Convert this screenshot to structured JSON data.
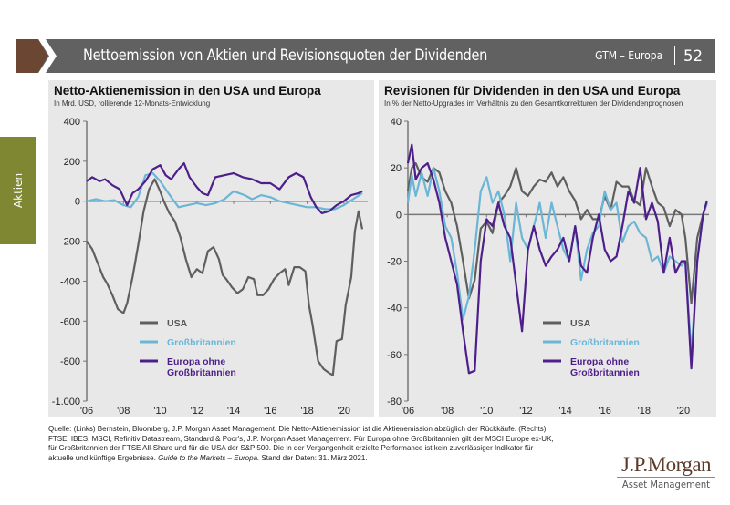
{
  "header": {
    "title": "Nettoemission von Aktien und Revisionsquoten der Dividenden",
    "gtm_label": "GTM – Europa",
    "page_number": "52"
  },
  "side_tab": {
    "label": "Aktien"
  },
  "colors": {
    "header_bar": "#616161",
    "header_accent": "#6b4633",
    "side_tab": "#7f8733",
    "panel_bg": "#e8e8e8",
    "usa": "#5f5f5f",
    "uk": "#6bb6d6",
    "europe_ex_uk": "#4e1f8a"
  },
  "chart_data": [
    {
      "type": "line",
      "title": "Netto-Aktienemission in den USA und Europa",
      "subtitle": "In Mrd. USD, rollierende 12-Monats-Entwicklung",
      "xlabel": "",
      "ylabel": "",
      "xlim": [
        2006,
        2021.3
      ],
      "ylim": [
        -1000,
        400
      ],
      "yticks": [
        400,
        200,
        0,
        -200,
        -400,
        -600,
        -800,
        -1000
      ],
      "ytick_labels": [
        "400",
        "200",
        "0",
        "-200",
        "-400",
        "-600",
        "-800",
        "-1.000"
      ],
      "xticks": [
        2006,
        2008,
        2010,
        2012,
        2014,
        2016,
        2018,
        2020
      ],
      "xtick_labels": [
        "'06",
        "'08",
        "'10",
        "'12",
        "'14",
        "'16",
        "'18",
        "'20"
      ],
      "grid": false,
      "legend": "bottom-left",
      "legend_entries": [
        "USA",
        "Großbritannien",
        "Europa ohne Großbritannien"
      ],
      "legend_lines": [
        [
          "USA"
        ],
        [
          "Großbritannien"
        ],
        [
          "Europa ohne",
          "Großbritannien"
        ]
      ],
      "series": [
        {
          "name": "USA",
          "key": "usa",
          "x": [
            2006.0,
            2006.3,
            2006.6,
            2006.9,
            2007.1,
            2007.4,
            2007.7,
            2008.0,
            2008.2,
            2008.5,
            2008.8,
            2009.1,
            2009.4,
            2009.7,
            2010.0,
            2010.2,
            2010.5,
            2010.8,
            2011.1,
            2011.4,
            2011.7,
            2012.0,
            2012.3,
            2012.6,
            2012.9,
            2013.2,
            2013.4,
            2013.6,
            2013.9,
            2014.2,
            2014.5,
            2014.8,
            2015.1,
            2015.3,
            2015.6,
            2015.9,
            2016.2,
            2016.5,
            2016.8,
            2017.0,
            2017.3,
            2017.6,
            2017.9,
            2018.1,
            2018.3,
            2018.6,
            2018.9,
            2019.2,
            2019.4,
            2019.6,
            2019.9,
            2020.1,
            2020.4,
            2020.6,
            2020.8,
            2021.0
          ],
          "y": [
            -200,
            -240,
            -310,
            -380,
            -410,
            -470,
            -540,
            -560,
            -510,
            -380,
            -220,
            -50,
            60,
            110,
            50,
            0,
            -60,
            -100,
            -180,
            -290,
            -380,
            -340,
            -360,
            -250,
            -230,
            -290,
            -370,
            -390,
            -430,
            -460,
            -440,
            -380,
            -390,
            -470,
            -470,
            -440,
            -390,
            -360,
            -340,
            -420,
            -330,
            -330,
            -350,
            -520,
            -620,
            -800,
            -840,
            -860,
            -870,
            -700,
            -690,
            -520,
            -380,
            -150,
            -50,
            -140
          ]
        },
        {
          "name": "Großbritannien",
          "key": "uk",
          "x": [
            2006.0,
            2006.5,
            2007.0,
            2007.5,
            2008.0,
            2008.4,
            2008.8,
            2009.2,
            2009.6,
            2010.0,
            2010.3,
            2010.6,
            2011.0,
            2011.5,
            2012.0,
            2012.5,
            2013.0,
            2013.5,
            2014.0,
            2014.3,
            2014.6,
            2015.0,
            2015.5,
            2016.0,
            2016.5,
            2017.0,
            2017.5,
            2018.0,
            2018.5,
            2019.0,
            2019.5,
            2020.0,
            2020.5,
            2021.0
          ],
          "y": [
            0,
            10,
            0,
            5,
            -20,
            -30,
            20,
            130,
            140,
            100,
            60,
            20,
            -30,
            -20,
            -10,
            -20,
            -10,
            10,
            50,
            40,
            30,
            10,
            30,
            20,
            0,
            -10,
            -20,
            -30,
            -30,
            -40,
            -40,
            -20,
            10,
            40
          ]
        },
        {
          "name": "Europa ohne Großbritannien",
          "key": "europe_ex_uk",
          "x": [
            2006.0,
            2006.3,
            2006.7,
            2007.0,
            2007.4,
            2007.8,
            2008.2,
            2008.5,
            2008.8,
            2009.2,
            2009.6,
            2010.0,
            2010.3,
            2010.6,
            2011.0,
            2011.3,
            2011.6,
            2012.0,
            2012.3,
            2012.6,
            2013.0,
            2013.5,
            2014.0,
            2014.5,
            2015.0,
            2015.5,
            2016.0,
            2016.5,
            2017.0,
            2017.4,
            2017.8,
            2018.2,
            2018.5,
            2018.8,
            2019.2,
            2019.6,
            2020.0,
            2020.4,
            2020.8,
            2021.0
          ],
          "y": [
            100,
            120,
            100,
            110,
            80,
            60,
            -20,
            40,
            60,
            100,
            160,
            180,
            130,
            110,
            160,
            190,
            120,
            70,
            40,
            30,
            120,
            130,
            140,
            120,
            110,
            90,
            90,
            60,
            120,
            140,
            120,
            20,
            -30,
            -60,
            -50,
            -20,
            0,
            30,
            40,
            50
          ]
        }
      ]
    },
    {
      "type": "line",
      "title": "Revisionen für Dividenden in den USA und Europa",
      "subtitle": "In % der Netto-Upgrades im Verhältnis zu den Gesamtkorrekturen der Dividendenprognosen",
      "xlabel": "",
      "ylabel": "",
      "xlim": [
        2006,
        2021.3
      ],
      "ylim": [
        -80,
        40
      ],
      "yticks": [
        40,
        20,
        0,
        -20,
        -40,
        -60,
        -80
      ],
      "ytick_labels": [
        "40",
        "20",
        "0",
        "-20",
        "-40",
        "-60",
        "-80"
      ],
      "xticks": [
        2006,
        2008,
        2010,
        2012,
        2014,
        2016,
        2018,
        2020
      ],
      "xtick_labels": [
        "'06",
        "'08",
        "'10",
        "'12",
        "'14",
        "'16",
        "'18",
        "'20"
      ],
      "grid": false,
      "legend": "bottom-center",
      "legend_entries": [
        "USA",
        "Großbritannien",
        "Europa ohne Großbritannien"
      ],
      "legend_lines": [
        [
          "USA"
        ],
        [
          "Großbritannien"
        ],
        [
          "Europa ohne",
          "Großbritannien"
        ]
      ],
      "series": [
        {
          "name": "USA",
          "key": "usa",
          "x": [
            2006.0,
            2006.2,
            2006.4,
            2006.7,
            2007.0,
            2007.3,
            2007.6,
            2007.9,
            2008.2,
            2008.5,
            2008.8,
            2009.1,
            2009.4,
            2009.7,
            2010.0,
            2010.3,
            2010.6,
            2010.9,
            2011.2,
            2011.5,
            2011.8,
            2012.1,
            2012.4,
            2012.7,
            2013.0,
            2013.3,
            2013.6,
            2013.9,
            2014.2,
            2014.5,
            2014.8,
            2015.1,
            2015.4,
            2015.7,
            2016.0,
            2016.3,
            2016.6,
            2016.9,
            2017.2,
            2017.5,
            2017.8,
            2018.1,
            2018.4,
            2018.7,
            2019.0,
            2019.3,
            2019.6,
            2019.9,
            2020.1,
            2020.4,
            2020.7,
            2021.0,
            2021.2
          ],
          "y": [
            10,
            20,
            22,
            16,
            14,
            20,
            18,
            10,
            5,
            -5,
            -20,
            -36,
            -28,
            -6,
            -3,
            -8,
            5,
            8,
            12,
            20,
            10,
            8,
            12,
            15,
            14,
            18,
            12,
            16,
            10,
            6,
            -2,
            2,
            -2,
            -2,
            8,
            2,
            14,
            12,
            12,
            6,
            4,
            20,
            12,
            5,
            3,
            -5,
            2,
            0,
            -10,
            -38,
            -10,
            0,
            5
          ]
        },
        {
          "name": "Großbritannien",
          "key": "uk",
          "x": [
            2006.0,
            2006.2,
            2006.4,
            2006.7,
            2007.0,
            2007.3,
            2007.6,
            2007.9,
            2008.2,
            2008.5,
            2008.8,
            2009.1,
            2009.4,
            2009.7,
            2010.0,
            2010.3,
            2010.6,
            2010.9,
            2011.2,
            2011.5,
            2011.8,
            2012.1,
            2012.4,
            2012.7,
            2013.0,
            2013.3,
            2013.6,
            2013.9,
            2014.2,
            2014.5,
            2014.8,
            2015.1,
            2015.4,
            2015.7,
            2016.0,
            2016.3,
            2016.6,
            2016.9,
            2017.2,
            2017.5,
            2017.8,
            2018.1,
            2018.4,
            2018.7,
            2019.0,
            2019.3,
            2019.6,
            2019.9,
            2020.1,
            2020.4,
            2020.7,
            2021.0,
            2021.2
          ],
          "y": [
            5,
            17,
            8,
            18,
            8,
            20,
            10,
            -5,
            -10,
            -25,
            -45,
            -35,
            -15,
            10,
            16,
            5,
            10,
            0,
            -20,
            5,
            -10,
            -15,
            -5,
            5,
            -10,
            5,
            -5,
            -15,
            -20,
            -5,
            -28,
            -15,
            -8,
            -5,
            10,
            2,
            5,
            -12,
            -5,
            -3,
            -8,
            -10,
            -20,
            -18,
            -25,
            -18,
            -20,
            -22,
            -20,
            -60,
            -20,
            0,
            5
          ]
        },
        {
          "name": "Europa ohne Großbritannien",
          "key": "europe_ex_uk",
          "x": [
            2006.0,
            2006.2,
            2006.4,
            2006.7,
            2007.0,
            2007.3,
            2007.6,
            2007.9,
            2008.2,
            2008.5,
            2008.8,
            2009.1,
            2009.4,
            2009.7,
            2010.0,
            2010.3,
            2010.6,
            2010.9,
            2011.2,
            2011.5,
            2011.8,
            2012.1,
            2012.4,
            2012.7,
            2013.0,
            2013.3,
            2013.6,
            2013.9,
            2014.2,
            2014.5,
            2014.8,
            2015.1,
            2015.4,
            2015.7,
            2016.0,
            2016.3,
            2016.6,
            2016.9,
            2017.2,
            2017.5,
            2017.8,
            2018.1,
            2018.4,
            2018.7,
            2019.0,
            2019.3,
            2019.6,
            2019.9,
            2020.1,
            2020.4,
            2020.7,
            2021.0,
            2021.2
          ],
          "y": [
            22,
            30,
            15,
            20,
            22,
            15,
            5,
            -10,
            -20,
            -30,
            -50,
            -68,
            -67,
            -20,
            -2,
            -5,
            5,
            -5,
            -10,
            -30,
            -50,
            -15,
            -5,
            -15,
            -22,
            -18,
            -15,
            -10,
            -20,
            -5,
            -22,
            -25,
            -10,
            0,
            -15,
            -20,
            -18,
            -5,
            10,
            5,
            20,
            -2,
            5,
            -3,
            -25,
            -10,
            -25,
            -20,
            -20,
            -66,
            -20,
            0,
            6
          ]
        }
      ]
    }
  ],
  "source": {
    "text_1": "Quelle: (Links) Bernstein, Bloomberg, J.P. Morgan Asset Management. Die Netto-Aktienemission ist die Aktienemission abzüglich der Rückkäufe. (Rechts) FTSE, IBES, MSCI, Refinitiv Datastream, Standard & Poor's, J.P. Morgan Asset Management. Für Europa ohne Großbritannien gilt der MSCI Europe ex-UK, für Großbritannien der FTSE All-Share und für die USA der S&P 500. Die in der Vergangenheit erzielte Performance ist kein zuverlässiger Indikator für aktuelle und künftige Ergebnisse. ",
    "italic": "Guide to the Markets – Europa.",
    "text_2": " Stand der Daten: 31. März 2021."
  },
  "logo": {
    "brand": "J.P.Morgan",
    "tagline": "Asset Management"
  }
}
